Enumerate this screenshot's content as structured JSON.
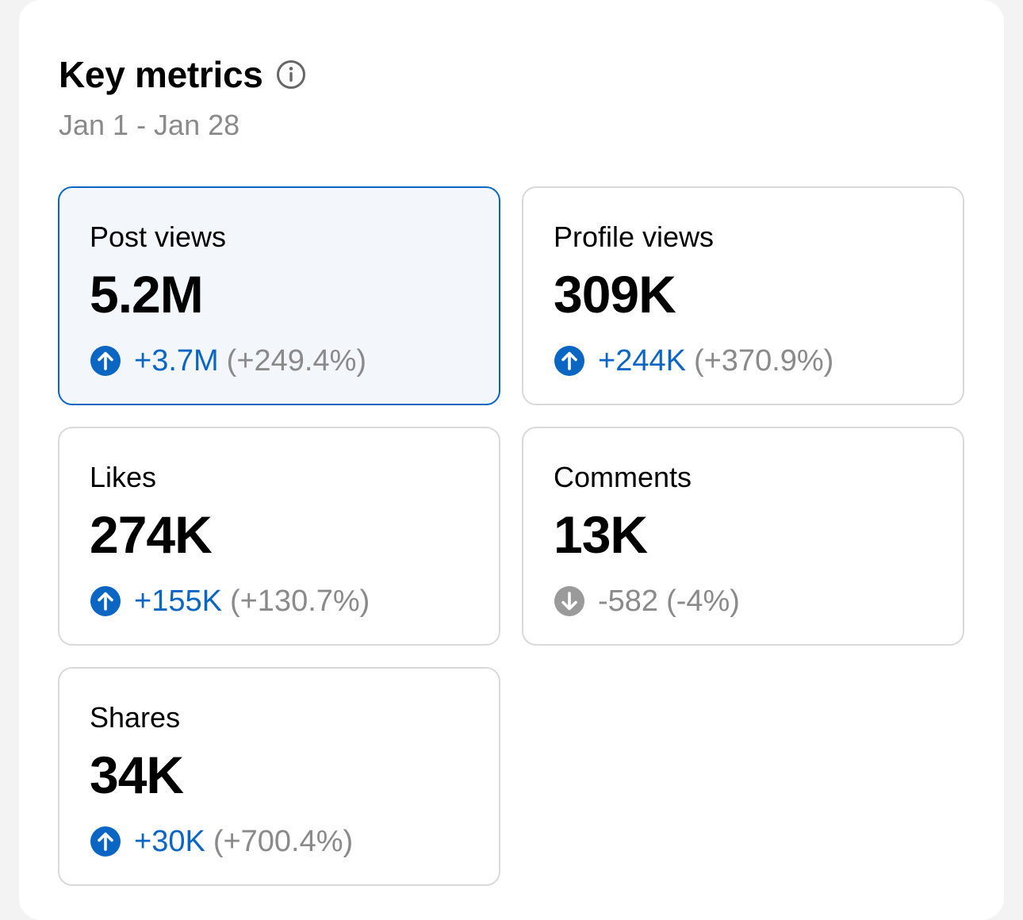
{
  "header": {
    "title": "Key metrics",
    "info_icon": "info-icon",
    "date_range": "Jan 1 - Jan 28"
  },
  "colors": {
    "accent": "#0a66c2",
    "muted": "#8a8a8a",
    "selected_bg": "#f3f7fc"
  },
  "metrics": [
    {
      "label": "Post views",
      "value": "5.2M",
      "delta": "+3.7M",
      "percent": "(+249.4%)",
      "trend": "up",
      "selected": true
    },
    {
      "label": "Profile views",
      "value": "309K",
      "delta": "+244K",
      "percent": "(+370.9%)",
      "trend": "up",
      "selected": false
    },
    {
      "label": "Likes",
      "value": "274K",
      "delta": "+155K",
      "percent": "(+130.7%)",
      "trend": "up",
      "selected": false
    },
    {
      "label": "Comments",
      "value": "13K",
      "delta": "-582",
      "percent": "(-4%)",
      "trend": "down",
      "selected": false
    },
    {
      "label": "Shares",
      "value": "34K",
      "delta": "+30K",
      "percent": "(+700.4%)",
      "trend": "up",
      "selected": false
    }
  ]
}
